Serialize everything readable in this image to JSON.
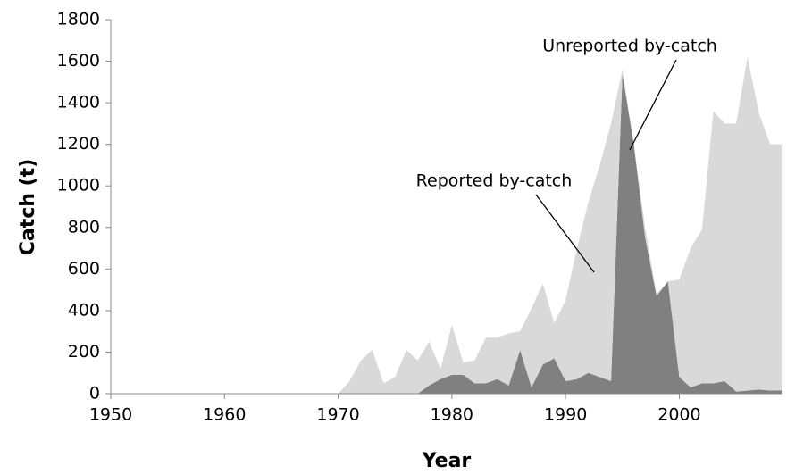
{
  "chart_data": {
    "type": "stacked-area",
    "x": [
      1950,
      1951,
      1952,
      1953,
      1954,
      1955,
      1956,
      1957,
      1958,
      1959,
      1960,
      1961,
      1962,
      1963,
      1964,
      1965,
      1966,
      1967,
      1968,
      1969,
      1970,
      1971,
      1972,
      1973,
      1974,
      1975,
      1976,
      1977,
      1978,
      1979,
      1980,
      1981,
      1982,
      1983,
      1984,
      1985,
      1986,
      1987,
      1988,
      1989,
      1990,
      1991,
      1992,
      1993,
      1994,
      1995,
      1996,
      1997,
      1998,
      1999,
      2000,
      2001,
      2002,
      2003,
      2004,
      2005,
      2006,
      2007,
      2008,
      2009
    ],
    "series": [
      {
        "name": "Unreported by-catch",
        "color": "#808080",
        "values": [
          0,
          0,
          0,
          0,
          0,
          0,
          0,
          0,
          0,
          0,
          0,
          0,
          0,
          0,
          0,
          0,
          0,
          0,
          0,
          0,
          0,
          0,
          0,
          0,
          0,
          0,
          0,
          0,
          40,
          70,
          90,
          90,
          50,
          50,
          70,
          40,
          210,
          30,
          140,
          170,
          60,
          70,
          100,
          80,
          60,
          1540,
          1200,
          750,
          470,
          540,
          80,
          30,
          50,
          50,
          60,
          10,
          15,
          20,
          15,
          15
        ]
      },
      {
        "name": "Reported by-catch",
        "color": "#d9d9d9",
        "values": [
          0,
          0,
          0,
          0,
          0,
          0,
          0,
          0,
          0,
          0,
          0,
          0,
          0,
          0,
          0,
          0,
          0,
          0,
          0,
          0,
          0,
          60,
          160,
          210,
          50,
          80,
          210,
          160,
          210,
          50,
          240,
          60,
          110,
          220,
          200,
          250,
          90,
          380,
          390,
          170,
          390,
          630,
          820,
          1020,
          1240,
          20,
          0,
          50,
          10,
          0,
          470,
          670,
          740,
          1310,
          1240,
          1290,
          1605,
          1330,
          1185,
          1185
        ]
      }
    ],
    "xlabel": "Year",
    "ylabel": "Catch (t)",
    "xlim": [
      1950,
      2009
    ],
    "xticks": [
      1950,
      1960,
      1970,
      1980,
      1990,
      2000
    ],
    "ylim": [
      0,
      1800
    ],
    "yticks": [
      0,
      200,
      400,
      600,
      800,
      1000,
      1200,
      1400,
      1600,
      1800
    ]
  }
}
